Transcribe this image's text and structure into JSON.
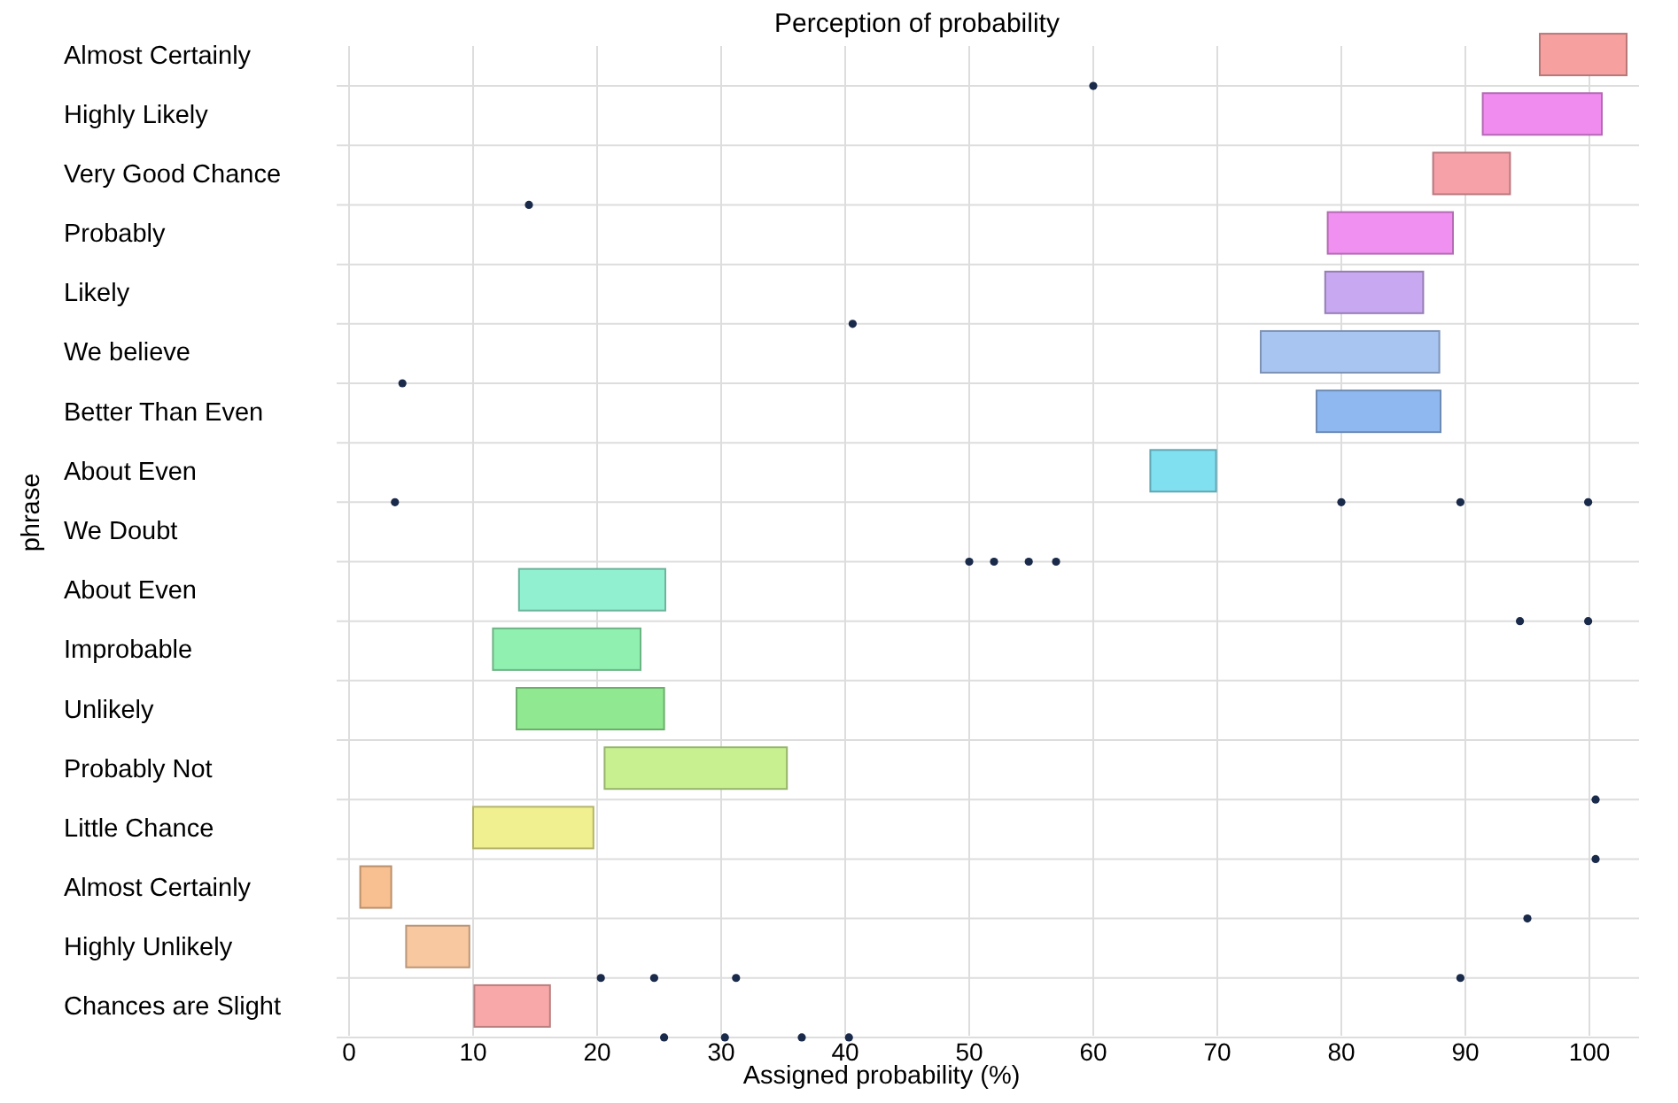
{
  "chart_data": {
    "type": "bar",
    "orientation": "horizontal",
    "title": "Perception of probability",
    "xlabel": "Assigned probability (%)",
    "ylabel": "phrase",
    "categories": [
      "Almost Certainly",
      "Highly Likely",
      "Very Good Chance",
      "Probably",
      "Likely",
      "We believe",
      "Better Than Even",
      "About Even",
      "We Doubt",
      "About Even",
      "Improbable",
      "Unlikely",
      "Probably Not",
      "Little Chance",
      "Almost Certainly",
      "Highly Unlikely",
      "Chances are Slight"
    ],
    "xlim": [
      -1,
      104
    ],
    "xticks": [
      0,
      10,
      20,
      30,
      40,
      50,
      60,
      70,
      80,
      90,
      100
    ],
    "grid": true,
    "series": [
      {
        "base": [
          96,
          91.4,
          87.4,
          78.9,
          78.7,
          73.5,
          78,
          64.6,
          null,
          13.7,
          11.6,
          13.5,
          20.6,
          10,
          0.9,
          4.6,
          10.1
        ],
        "values": [
          7,
          9.6,
          6.2,
          10.1,
          7.9,
          14.4,
          10,
          5.3,
          null,
          11.8,
          11.9,
          11.9,
          14.7,
          9.7,
          2.5,
          5.1,
          6.1
        ],
        "colors": [
          "#f6a0a0",
          "#f08cf0",
          "#f6a0a8",
          "#f090f0",
          "#c8a8f0",
          "#a8c4f0",
          "#90b8f0",
          "#80e0f0",
          null,
          "#90f0d0",
          "#90f0b0",
          "#90e890",
          "#c8f090",
          "#f0f090",
          "#f8c090",
          "#f8c8a0",
          "#f8a8a8"
        ]
      },
      {
        "type": "scatter",
        "color": "#1a2a4a",
        "values": [
          60,
          null,
          14.5,
          null,
          40.6,
          4.3,
          null,
          3.7,
          50,
          94.4,
          null,
          null,
          100.5,
          100.5,
          95,
          20.3,
          25.4
        ]
      },
      {
        "type": "scatter",
        "color": "#1a2a4a",
        "values": [
          null,
          null,
          null,
          null,
          null,
          null,
          null,
          80,
          52,
          99.9,
          null,
          null,
          null,
          null,
          null,
          24.6,
          30.3
        ]
      },
      {
        "type": "scatter",
        "color": "#1a2a4a",
        "values": [
          null,
          null,
          null,
          null,
          null,
          null,
          null,
          89.6,
          54.8,
          null,
          null,
          null,
          null,
          null,
          null,
          31.2,
          36.5
        ]
      },
      {
        "type": "scatter",
        "color": "#1a2a4a",
        "values": [
          null,
          null,
          null,
          null,
          null,
          null,
          null,
          99.9,
          57,
          null,
          null,
          null,
          null,
          null,
          null,
          89.6,
          40.3
        ]
      }
    ]
  }
}
